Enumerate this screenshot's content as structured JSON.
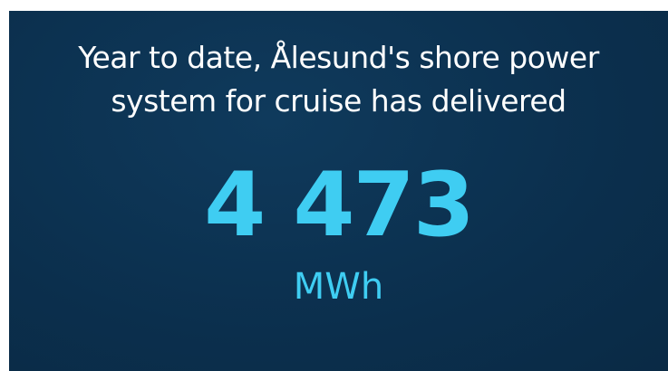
{
  "widget": {
    "heading_line1": "Year to date, Ålesund's shore power",
    "heading_line2": "system for cruise has delivered",
    "value": "4 473",
    "unit": "MWh"
  }
}
